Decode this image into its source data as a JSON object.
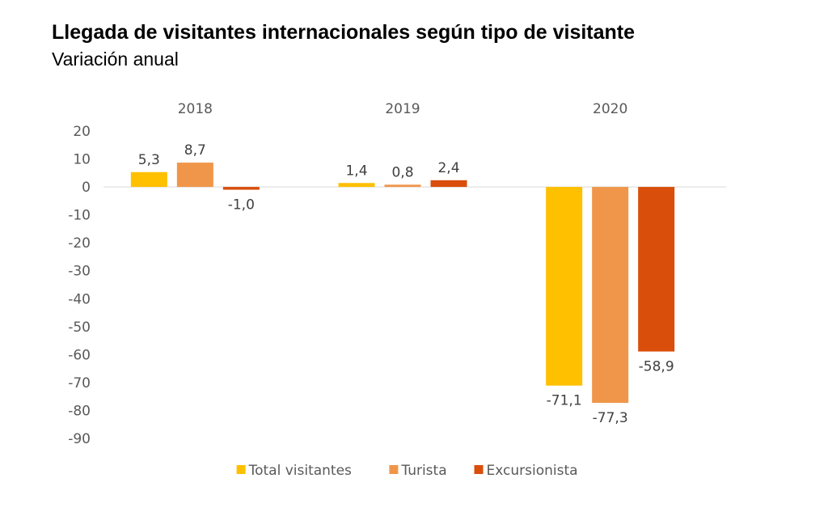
{
  "header": {
    "title": "Llegada de visitantes internacionales según tipo de visitante",
    "subtitle": "Variación anual"
  },
  "chart_data": {
    "type": "bar",
    "title": "Llegada de visitantes internacionales según tipo de visitante",
    "subtitle": "Variación anual",
    "categories": [
      "2018",
      "2019",
      "2020"
    ],
    "series": [
      {
        "name": "Total visitantes",
        "color": "#FFC000",
        "values": [
          5.3,
          1.4,
          -71.1
        ],
        "labels": [
          "5,3",
          "1,4",
          "-71,1"
        ]
      },
      {
        "name": "Turista",
        "color": "#F0964A",
        "values": [
          8.7,
          0.8,
          -77.3
        ],
        "labels": [
          "8,7",
          "0,8",
          "-77,3"
        ]
      },
      {
        "name": "Excursionista",
        "color": "#D94E0B",
        "values": [
          -1.0,
          2.4,
          -58.9
        ],
        "labels": [
          "-1,0",
          "2,4",
          "-58,9"
        ]
      }
    ],
    "ylim": [
      -90,
      20
    ],
    "yticks": [
      20,
      10,
      0,
      -10,
      -20,
      -30,
      -40,
      -50,
      -60,
      -70,
      -80,
      -90
    ],
    "xlabel": "",
    "ylabel": "",
    "category_axis_position": "top",
    "grid": false,
    "legend": "bottom"
  }
}
